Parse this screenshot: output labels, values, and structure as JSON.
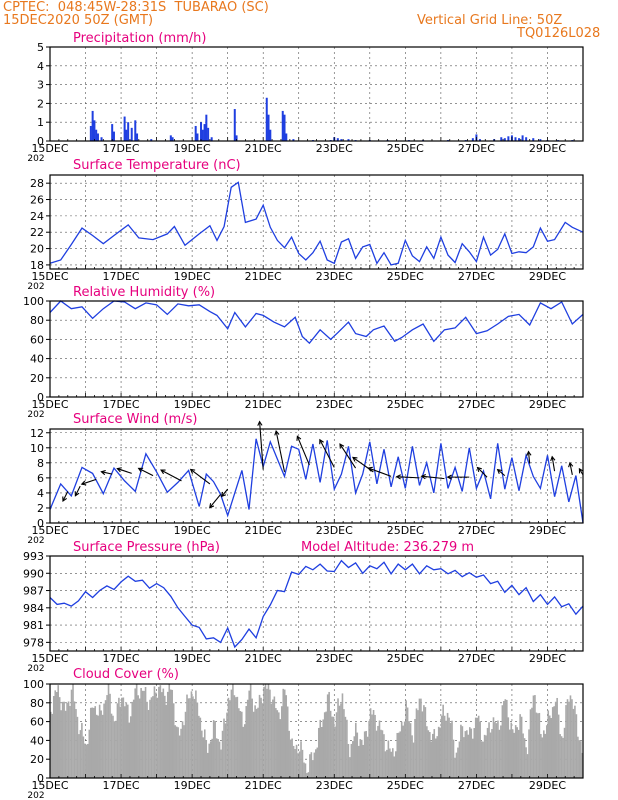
{
  "header": {
    "line1": "CPTEC:  048:45W-28:31S  TUBARAO (SC)",
    "line2": "15DEC2020 50Z (GMT)",
    "grid_note": "Vertical Grid Line: 50Z",
    "code": "TQ0126L028"
  },
  "colors": {
    "header": "#e8781e",
    "title": "#e6007e",
    "series": "#1f3fe0",
    "arrow": "#000000",
    "cloud": "#a9a9a9"
  },
  "x_tick_labels": [
    "15DEC",
    "17DEC",
    "19DEC",
    "21DEC",
    "23DEC",
    "25DEC",
    "27DEC",
    "29DEC"
  ],
  "x_tick_subtext": "202",
  "model_altitude": "Model Altitude: 236.279 m",
  "chart_data": [
    {
      "id": "precip",
      "type": "bar",
      "title": "Precipitation (mm/h)",
      "ylim": [
        0,
        5
      ],
      "yticks": [
        0,
        1,
        2,
        3,
        4,
        5
      ],
      "xlim_days": [
        15,
        30
      ],
      "bars": [
        [
          16.15,
          0.8
        ],
        [
          16.2,
          1.6
        ],
        [
          16.25,
          1.1
        ],
        [
          16.3,
          0.6
        ],
        [
          16.35,
          0.4
        ],
        [
          16.45,
          0.2
        ],
        [
          16.75,
          0.9
        ],
        [
          16.8,
          0.5
        ],
        [
          17.1,
          1.3
        ],
        [
          17.15,
          0.6
        ],
        [
          17.2,
          1.0
        ],
        [
          17.3,
          0.7
        ],
        [
          17.4,
          1.1
        ],
        [
          17.45,
          0.4
        ],
        [
          17.85,
          0.1
        ],
        [
          18.4,
          0.3
        ],
        [
          18.45,
          0.2
        ],
        [
          19.1,
          0.8
        ],
        [
          19.15,
          0.4
        ],
        [
          19.25,
          1.0
        ],
        [
          19.3,
          0.6
        ],
        [
          19.35,
          0.9
        ],
        [
          19.4,
          1.4
        ],
        [
          19.45,
          0.7
        ],
        [
          19.55,
          0.2
        ],
        [
          20.2,
          1.7
        ],
        [
          20.25,
          0.3
        ],
        [
          21.1,
          2.3
        ],
        [
          21.15,
          1.4
        ],
        [
          21.2,
          0.6
        ],
        [
          21.55,
          1.6
        ],
        [
          21.6,
          1.4
        ],
        [
          21.65,
          0.4
        ],
        [
          21.85,
          0.1
        ],
        [
          22.4,
          0.05
        ],
        [
          22.9,
          0.05
        ],
        [
          23.0,
          0.2
        ],
        [
          23.1,
          0.15
        ],
        [
          23.2,
          0.1
        ],
        [
          23.4,
          0.1
        ],
        [
          23.6,
          0.05
        ],
        [
          24.0,
          0.05
        ],
        [
          24.5,
          0.05
        ],
        [
          25.1,
          0.05
        ],
        [
          25.5,
          0.05
        ],
        [
          26.2,
          0.05
        ],
        [
          26.7,
          0.05
        ],
        [
          26.9,
          0.15
        ],
        [
          27.0,
          0.35
        ],
        [
          27.1,
          0.1
        ],
        [
          27.5,
          0.1
        ],
        [
          27.7,
          0.2
        ],
        [
          27.8,
          0.15
        ],
        [
          27.9,
          0.25
        ],
        [
          28.0,
          0.3
        ],
        [
          28.1,
          0.2
        ],
        [
          28.2,
          0.15
        ],
        [
          28.3,
          0.3
        ],
        [
          28.4,
          0.2
        ],
        [
          28.6,
          0.15
        ],
        [
          28.8,
          0.1
        ],
        [
          29.0,
          0.05
        ],
        [
          29.3,
          0.05
        ],
        [
          29.7,
          0.05
        ]
      ]
    },
    {
      "id": "temp",
      "type": "line",
      "title": "Surface Temperature (nC)",
      "ylim": [
        17.5,
        29
      ],
      "yticks": [
        18,
        20,
        22,
        24,
        26,
        28
      ],
      "xlim_days": [
        15,
        30
      ],
      "x": [
        15.0,
        15.3,
        15.6,
        15.9,
        16.2,
        16.5,
        16.8,
        17.2,
        17.5,
        17.9,
        18.3,
        18.5,
        18.8,
        19.2,
        19.5,
        19.7,
        19.9,
        20.1,
        20.3,
        20.5,
        20.8,
        21.0,
        21.2,
        21.4,
        21.6,
        21.8,
        22.0,
        22.2,
        22.4,
        22.6,
        22.8,
        23.0,
        23.2,
        23.4,
        23.6,
        23.8,
        24.0,
        24.2,
        24.4,
        24.6,
        24.8,
        25.0,
        25.2,
        25.4,
        25.6,
        25.8,
        26.0,
        26.2,
        26.4,
        26.6,
        26.8,
        27.0,
        27.2,
        27.4,
        27.6,
        27.8,
        28.0,
        28.2,
        28.4,
        28.6,
        28.8,
        29.0,
        29.2,
        29.5,
        29.7,
        30.0
      ],
      "y": [
        18.2,
        18.6,
        20.5,
        22.5,
        21.6,
        20.6,
        21.6,
        22.9,
        21.3,
        21.1,
        21.8,
        22.7,
        20.4,
        21.8,
        22.8,
        21.0,
        22.7,
        27.5,
        28.1,
        23.2,
        23.6,
        25.3,
        22.6,
        21.0,
        20.1,
        21.4,
        19.4,
        18.6,
        19.5,
        20.9,
        18.6,
        18.2,
        20.8,
        21.2,
        18.8,
        20.2,
        20.5,
        18.2,
        19.5,
        18.0,
        18.2,
        21.0,
        19.1,
        18.4,
        20.2,
        18.8,
        21.4,
        19.2,
        18.3,
        20.6,
        19.6,
        18.4,
        21.4,
        19.2,
        19.9,
        21.8,
        19.4,
        19.6,
        19.5,
        20.2,
        22.5,
        20.9,
        21.1,
        23.2,
        22.6,
        22.0
      ]
    },
    {
      "id": "rh",
      "type": "line",
      "title": "Relative Humidity (%)",
      "ylim": [
        0,
        100
      ],
      "yticks": [
        0,
        20,
        40,
        60,
        80,
        100
      ],
      "xlim_days": [
        15,
        30
      ],
      "x": [
        15.0,
        15.3,
        15.6,
        15.9,
        16.2,
        16.5,
        16.8,
        17.1,
        17.4,
        17.7,
        18.0,
        18.3,
        18.6,
        18.9,
        19.2,
        19.5,
        19.7,
        20.0,
        20.2,
        20.5,
        20.8,
        21.0,
        21.3,
        21.6,
        21.9,
        22.1,
        22.3,
        22.6,
        22.9,
        23.1,
        23.4,
        23.6,
        23.9,
        24.1,
        24.4,
        24.7,
        24.9,
        25.2,
        25.5,
        25.8,
        26.1,
        26.4,
        26.7,
        27.0,
        27.3,
        27.6,
        27.9,
        28.2,
        28.5,
        28.8,
        29.1,
        29.4,
        29.7,
        30.0
      ],
      "y": [
        88,
        100,
        92,
        94,
        82,
        92,
        100,
        99,
        92,
        98,
        96,
        86,
        97,
        95,
        96,
        89,
        85,
        71,
        88,
        73,
        87,
        85,
        78,
        73,
        83,
        63,
        56,
        70,
        60,
        67,
        78,
        66,
        63,
        70,
        74,
        58,
        62,
        70,
        76,
        58,
        70,
        72,
        83,
        66,
        69,
        76,
        84,
        86,
        75,
        98,
        92,
        99,
        76,
        86
      ]
    },
    {
      "id": "wind",
      "type": "line",
      "title": "Surface Wind (m/s)",
      "ylim": [
        0,
        12.5
      ],
      "yticks": [
        0,
        2,
        4,
        6,
        8,
        10,
        12
      ],
      "xlim_days": [
        15,
        30
      ],
      "x": [
        15.0,
        15.3,
        15.6,
        15.9,
        16.2,
        16.5,
        16.8,
        17.1,
        17.4,
        17.7,
        18.0,
        18.3,
        18.6,
        18.9,
        19.2,
        19.4,
        19.6,
        19.8,
        20.0,
        20.2,
        20.4,
        20.6,
        20.8,
        21.0,
        21.2,
        21.4,
        21.6,
        21.8,
        22.0,
        22.2,
        22.4,
        22.6,
        22.8,
        23.0,
        23.2,
        23.4,
        23.6,
        23.8,
        24.0,
        24.2,
        24.4,
        24.6,
        24.8,
        25.0,
        25.2,
        25.4,
        25.6,
        25.8,
        26.0,
        26.2,
        26.4,
        26.6,
        26.8,
        27.0,
        27.2,
        27.4,
        27.6,
        27.8,
        28.0,
        28.2,
        28.4,
        28.6,
        28.8,
        29.0,
        29.2,
        29.4,
        29.6,
        29.8,
        30.0
      ],
      "y": [
        1.8,
        5.2,
        3.6,
        7.4,
        6.6,
        3.9,
        7.3,
        5.6,
        4.2,
        9.2,
        6.8,
        4.1,
        5.4,
        7.0,
        2.2,
        6.5,
        5.5,
        3.8,
        1.0,
        4.0,
        7.0,
        1.8,
        11.2,
        7.5,
        10.8,
        8.5,
        6.2,
        10.2,
        9.8,
        5.8,
        10.5,
        5.4,
        11.0,
        4.5,
        6.5,
        10.2,
        4.0,
        6.5,
        10.8,
        5.2,
        9.8,
        4.8,
        8.8,
        4.6,
        10.2,
        5.0,
        8.0,
        4.0,
        10.6,
        4.6,
        7.4,
        4.2,
        10.0,
        4.6,
        6.9,
        3.2,
        10.6,
        4.5,
        8.7,
        4.3,
        9.0,
        6.2,
        4.6,
        9.0,
        3.5,
        7.6,
        2.8,
        6.3,
        0.0
      ],
      "arrows": [
        [
          15.5,
          4.2,
          -0.4,
          -0.8
        ],
        [
          15.85,
          4.9,
          -0.4,
          -0.8
        ],
        [
          16.3,
          5.8,
          -1.2,
          -0.4
        ],
        [
          16.75,
          6.5,
          -0.9,
          0.2
        ],
        [
          17.3,
          6.6,
          -1.2,
          0.4
        ],
        [
          17.9,
          6.3,
          -1.2,
          0.6
        ],
        [
          18.7,
          5.6,
          -1.7,
          0.9
        ],
        [
          19.5,
          5.2,
          -1.6,
          1.2
        ],
        [
          19.8,
          3.8,
          -0.9,
          -1.1
        ],
        [
          20.0,
          4.5,
          -0.5,
          -0.6
        ],
        [
          21.0,
          7.1,
          -0.3,
          4.0
        ],
        [
          21.6,
          6.8,
          -0.7,
          3.4
        ],
        [
          22.3,
          7.7,
          -1.0,
          2.4
        ],
        [
          23.0,
          7.4,
          -1.2,
          2.3
        ],
        [
          23.6,
          7.3,
          -1.3,
          2.0
        ],
        [
          24.1,
          6.8,
          -1.7,
          1.2
        ],
        [
          24.6,
          6.2,
          -1.9,
          0.7
        ],
        [
          25.4,
          6.0,
          -1.9,
          0.1
        ],
        [
          26.1,
          5.9,
          -1.9,
          0.2
        ],
        [
          26.8,
          6.1,
          -1.8,
          0.0
        ],
        [
          27.3,
          6.1,
          -0.8,
          0.8
        ],
        [
          27.8,
          6.3,
          -0.6,
          0.5
        ],
        [
          28.5,
          7.9,
          -0.1,
          1.0
        ],
        [
          29.2,
          6.9,
          -0.2,
          1.2
        ],
        [
          29.7,
          6.4,
          -0.2,
          1.0
        ],
        [
          30.0,
          6.4,
          -0.3,
          0.5
        ]
      ]
    },
    {
      "id": "pressure",
      "type": "line",
      "title": "Surface Pressure (hPa)",
      "ylim": [
        976.5,
        993
      ],
      "yticks": [
        978,
        981,
        984,
        987,
        990,
        993
      ],
      "xlim_days": [
        15,
        30
      ],
      "x": [
        15.0,
        15.2,
        15.4,
        15.6,
        15.8,
        16.0,
        16.2,
        16.4,
        16.6,
        16.8,
        17.0,
        17.2,
        17.4,
        17.6,
        17.8,
        18.0,
        18.2,
        18.4,
        18.6,
        18.8,
        19.0,
        19.2,
        19.4,
        19.6,
        19.8,
        20.0,
        20.2,
        20.4,
        20.6,
        20.8,
        21.0,
        21.2,
        21.4,
        21.6,
        21.8,
        22.0,
        22.2,
        22.4,
        22.6,
        22.8,
        23.0,
        23.2,
        23.4,
        23.6,
        23.8,
        24.0,
        24.2,
        24.4,
        24.6,
        24.8,
        25.0,
        25.2,
        25.4,
        25.6,
        25.8,
        26.0,
        26.2,
        26.4,
        26.6,
        26.8,
        27.0,
        27.2,
        27.4,
        27.6,
        27.8,
        28.0,
        28.2,
        28.4,
        28.6,
        28.8,
        29.0,
        29.2,
        29.4,
        29.6,
        29.8,
        30.0
      ],
      "y": [
        985.8,
        984.6,
        984.8,
        984.3,
        985.2,
        986.8,
        985.8,
        987.0,
        987.8,
        987.2,
        988.5,
        989.5,
        988.6,
        988.8,
        987.4,
        988.2,
        987.5,
        986.0,
        984.0,
        982.5,
        981.0,
        980.6,
        978.6,
        978.8,
        978.0,
        980.5,
        977.2,
        978.5,
        980.3,
        978.8,
        982.5,
        984.5,
        987.0,
        986.8,
        990.2,
        989.8,
        991.2,
        990.6,
        991.6,
        990.4,
        990.3,
        992.2,
        991.0,
        991.8,
        990.0,
        991.3,
        990.8,
        991.9,
        989.9,
        991.6,
        990.6,
        991.6,
        989.9,
        991.3,
        990.6,
        990.8,
        989.9,
        990.5,
        989.4,
        990.1,
        989.3,
        989.7,
        988.2,
        988.6,
        986.7,
        987.9,
        986.3,
        987.5,
        985.1,
        986.3,
        984.6,
        985.9,
        984.2,
        984.7,
        982.9,
        984.3
      ]
    },
    {
      "id": "cloud",
      "type": "bar",
      "title": "Cloud Cover (%)",
      "ylim": [
        0,
        100
      ],
      "yticks": [
        0,
        20,
        40,
        60,
        80,
        100
      ],
      "xlim_days": [
        15,
        30
      ],
      "profile": [
        [
          15.0,
          75
        ],
        [
          15.2,
          95
        ],
        [
          15.4,
          70
        ],
        [
          15.6,
          95
        ],
        [
          15.8,
          55
        ],
        [
          16.0,
          35
        ],
        [
          16.2,
          80
        ],
        [
          16.4,
          65
        ],
        [
          16.6,
          95
        ],
        [
          16.8,
          60
        ],
        [
          17.0,
          90
        ],
        [
          17.2,
          65
        ],
        [
          17.4,
          95
        ],
        [
          17.6,
          92
        ],
        [
          17.8,
          80
        ],
        [
          18.0,
          97
        ],
        [
          18.2,
          88
        ],
        [
          18.4,
          95
        ],
        [
          18.6,
          40
        ],
        [
          18.8,
          75
        ],
        [
          19.0,
          95
        ],
        [
          19.2,
          65
        ],
        [
          19.4,
          30
        ],
        [
          19.6,
          55
        ],
        [
          19.8,
          35
        ],
        [
          20.0,
          85
        ],
        [
          20.2,
          95
        ],
        [
          20.4,
          55
        ],
        [
          20.6,
          95
        ],
        [
          20.8,
          70
        ],
        [
          21.0,
          97
        ],
        [
          21.2,
          92
        ],
        [
          21.4,
          65
        ],
        [
          21.6,
          95
        ],
        [
          21.8,
          30
        ],
        [
          22.0,
          35
        ],
        [
          22.2,
          10
        ],
        [
          22.4,
          25
        ],
        [
          22.6,
          55
        ],
        [
          22.8,
          85
        ],
        [
          23.0,
          60
        ],
        [
          23.2,
          92
        ],
        [
          23.4,
          30
        ],
        [
          23.6,
          50
        ],
        [
          23.8,
          35
        ],
        [
          24.0,
          70
        ],
        [
          24.2,
          60
        ],
        [
          24.4,
          40
        ],
        [
          24.6,
          25
        ],
        [
          24.8,
          45
        ],
        [
          25.0,
          75
        ],
        [
          25.2,
          45
        ],
        [
          25.4,
          90
        ],
        [
          25.6,
          55
        ],
        [
          25.8,
          40
        ],
        [
          26.0,
          65
        ],
        [
          26.2,
          70
        ],
        [
          26.4,
          25
        ],
        [
          26.6,
          55
        ],
        [
          26.8,
          45
        ],
        [
          27.0,
          65
        ],
        [
          27.2,
          40
        ],
        [
          27.4,
          60
        ],
        [
          27.6,
          55
        ],
        [
          27.8,
          85
        ],
        [
          28.0,
          45
        ],
        [
          28.2,
          65
        ],
        [
          28.4,
          30
        ],
        [
          28.6,
          95
        ],
        [
          28.8,
          45
        ],
        [
          29.0,
          60
        ],
        [
          29.2,
          85
        ],
        [
          29.4,
          40
        ],
        [
          29.6,
          95
        ],
        [
          29.8,
          60
        ],
        [
          30.0,
          20
        ]
      ]
    }
  ]
}
